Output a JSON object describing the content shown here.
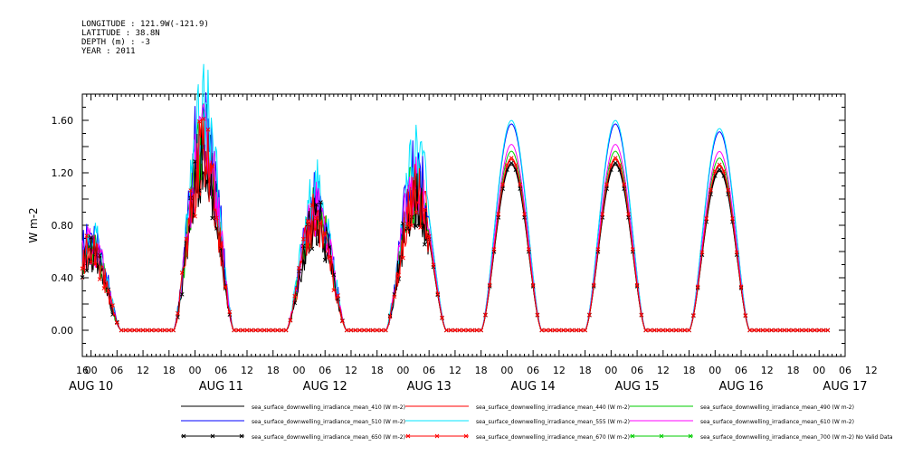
{
  "header": {
    "longitude": "LONGITUDE : 121.9W(-121.9)",
    "latitude": "LATITUDE : 38.8N",
    "depth": "DEPTH (m) : -3",
    "year": "YEAR : 2011"
  },
  "chart_data": {
    "type": "line",
    "ylabel": "W m-2",
    "ylim": [
      -0.2,
      1.8
    ],
    "ytick_labels": [
      "0.00",
      "0.40",
      "0.80",
      "1.20",
      "1.60"
    ],
    "x_hour_labels": [
      "16",
      "00",
      "06",
      "12",
      "18",
      "00",
      "06",
      "12",
      "18",
      "00",
      "06",
      "12",
      "18",
      "00",
      "06",
      "12",
      "18",
      "00",
      "06",
      "12",
      "18",
      "00",
      "06",
      "12",
      "18",
      "00",
      "06",
      "12",
      "18",
      "00",
      "06",
      "12"
    ],
    "x_date_labels": [
      "AUG 10",
      "AUG 11",
      "AUG 12",
      "AUG 13",
      "AUG 14",
      "AUG 15",
      "AUG 16",
      "AUG 17"
    ],
    "x_start": "2011-08-10T16:00",
    "daily_peaks": [
      {
        "date": "AUG 10",
        "peak_hour": 18,
        "peak_value": 0.6
      },
      {
        "date": "AUG 11",
        "peak_hour": 20,
        "peak_value": 1.35
      },
      {
        "date": "AUG 12",
        "peak_hour": 22,
        "peak_value": 0.85
      },
      {
        "date": "AUG 13",
        "peak_hour": 21,
        "peak_value": 1.05
      },
      {
        "date": "AUG 14",
        "peak_hour": 19,
        "peak_value": 1.3
      },
      {
        "date": "AUG 15",
        "peak_hour": 19,
        "peak_value": 1.3
      },
      {
        "date": "AUG 16",
        "peak_hour": 19,
        "peak_value": 1.25
      }
    ],
    "series": [
      {
        "name": "sea_surface_downwelling_irradiance_mean_410 (W m-2)",
        "color": "#000000",
        "marker": "none",
        "scale": 0.97
      },
      {
        "name": "sea_surface_downwelling_irradiance_mean_440 (W m-2)",
        "color": "#ff0000",
        "marker": "none",
        "scale": 1.0
      },
      {
        "name": "sea_surface_downwelling_irradiance_mean_490 (W m-2)",
        "color": "#00cc00",
        "marker": "none",
        "scale": 1.05
      },
      {
        "name": "sea_surface_downwelling_irradiance_mean_510 (W m-2)",
        "color": "#0000ff",
        "marker": "none",
        "scale": 1.21
      },
      {
        "name": "sea_surface_downwelling_irradiance_mean_555 (W m-2)",
        "color": "#00e5ff",
        "marker": "none",
        "scale": 1.23
      },
      {
        "name": "sea_surface_downwelling_irradiance_mean_610 (W m-2)",
        "color": "#ff00ff",
        "marker": "none",
        "scale": 1.09
      },
      {
        "name": "sea_surface_downwelling_irradiance_mean_650 (W m-2)",
        "color": "#000000",
        "marker": "x",
        "scale": 0.98
      },
      {
        "name": "sea_surface_downwelling_irradiance_mean_670 (W m-2)",
        "color": "#ff0000",
        "marker": "x",
        "scale": 1.01
      },
      {
        "name": "sea_surface_downwelling_irradiance_mean_700 (W m-2) No Valid Data",
        "color": "#00cc00",
        "marker": "x",
        "scale": 0
      }
    ]
  }
}
